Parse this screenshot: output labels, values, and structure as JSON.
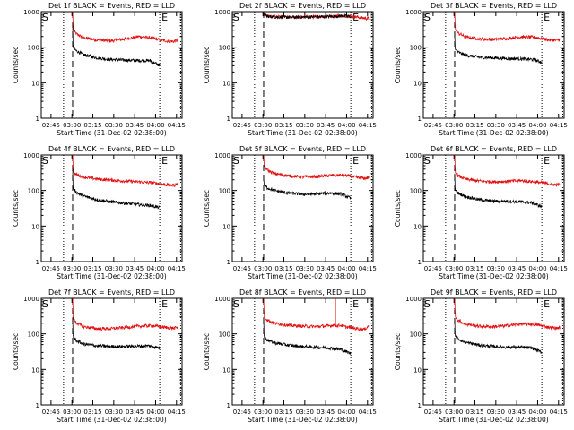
{
  "figure": {
    "type": "line",
    "n_rows": 3,
    "n_cols": 3,
    "y_scale": "log",
    "ylim": [
      1,
      1000
    ],
    "x_range_minutes_after_start": [
      0,
      101
    ],
    "marker_start": "S",
    "marker_end": "E",
    "xlabel": "Start Time (31-Dec-02 02:38:00)",
    "ylabel": "Counts/sec",
    "x_tick_labels": [
      "02:45",
      "03:00",
      "03:15",
      "03:30",
      "03:45",
      "04:00",
      "04:15"
    ],
    "x_tick_minutes": [
      7,
      22,
      37,
      52,
      67,
      82,
      97
    ],
    "y_tick_labels": [
      "1",
      "10",
      "100",
      "1000"
    ],
    "y_tick_values": [
      1,
      10,
      100,
      1000
    ],
    "dotted_lines_minutes": [
      16,
      85,
      100
    ],
    "dashed_line_minute": 22.5,
    "colors": {
      "events": "#000000",
      "lld": "#e01010",
      "guide": "#000000"
    }
  },
  "chart_data": [
    {
      "title": "Det 1f BLACK = Events, RED = LLD",
      "type": "line",
      "xlabel": "Start Time (31-Dec-02 02:38:00)",
      "ylabel": "Counts/sec",
      "ylim": [
        1,
        1000
      ],
      "series": [
        {
          "name": "LLD (red)",
          "x": [
            22.5,
            22.6,
            23,
            25,
            30,
            40,
            50,
            60,
            70,
            80,
            85,
            90,
            95,
            98
          ],
          "values": [
            1000,
            650,
            300,
            240,
            185,
            160,
            150,
            170,
            200,
            180,
            160,
            150,
            145,
            155
          ]
        },
        {
          "name": "Events (black)",
          "x": [
            22.5,
            22.6,
            23,
            25,
            30,
            40,
            50,
            60,
            70,
            78,
            85
          ],
          "values": [
            500,
            140,
            95,
            80,
            62,
            50,
            45,
            43,
            42,
            42,
            30
          ]
        }
      ]
    },
    {
      "title": "Det 2f BLACK = Events, RED = LLD",
      "type": "line",
      "xlabel": "Start Time (31-Dec-02 02:38:00)",
      "ylabel": "Counts/sec",
      "ylim": [
        1,
        1000
      ],
      "series": [
        {
          "name": "LLD (red)",
          "x": [
            22.5,
            22.6,
            23,
            25,
            30,
            40,
            50,
            60,
            70,
            80,
            85,
            90,
            95,
            98
          ],
          "values": [
            1000,
            900,
            800,
            750,
            720,
            700,
            700,
            720,
            740,
            760,
            740,
            700,
            650,
            640
          ]
        },
        {
          "name": "Events (black)",
          "x": [
            22.5,
            22.6,
            23,
            25,
            30,
            40,
            50,
            60,
            70,
            78,
            85
          ],
          "values": [
            1000,
            900,
            800,
            740,
            710,
            690,
            700,
            710,
            730,
            760,
            720
          ]
        }
      ]
    },
    {
      "title": "Det 3f BLACK = Events, RED = LLD",
      "type": "line",
      "xlabel": "Start Time (31-Dec-02 02:38:00)",
      "ylabel": "Counts/sec",
      "ylim": [
        1,
        1000
      ],
      "series": [
        {
          "name": "LLD (red)",
          "x": [
            22.5,
            22.6,
            23,
            25,
            30,
            40,
            50,
            60,
            70,
            80,
            85,
            90,
            95,
            98
          ],
          "values": [
            1000,
            650,
            320,
            250,
            195,
            170,
            165,
            175,
            195,
            190,
            175,
            160,
            155,
            165
          ]
        },
        {
          "name": "Events (black)",
          "x": [
            22.5,
            22.6,
            23,
            25,
            30,
            40,
            50,
            60,
            70,
            78,
            85
          ],
          "values": [
            250,
            120,
            85,
            72,
            60,
            52,
            50,
            48,
            47,
            45,
            38
          ]
        }
      ]
    },
    {
      "title": "Det 4f BLACK = Events, RED = LLD",
      "type": "line",
      "xlabel": "Start Time (31-Dec-02 02:38:00)",
      "ylabel": "Counts/sec",
      "ylim": [
        1,
        1000
      ],
      "series": [
        {
          "name": "LLD (red)",
          "x": [
            22.5,
            22.6,
            23,
            25,
            30,
            40,
            50,
            60,
            70,
            80,
            85,
            90,
            95,
            98
          ],
          "values": [
            1000,
            700,
            330,
            280,
            240,
            210,
            195,
            185,
            175,
            165,
            155,
            145,
            140,
            155
          ]
        },
        {
          "name": "Events (black)",
          "x": [
            22.5,
            22.6,
            23,
            25,
            30,
            40,
            50,
            60,
            70,
            78,
            85
          ],
          "values": [
            400,
            150,
            110,
            90,
            70,
            55,
            48,
            44,
            40,
            38,
            33
          ]
        }
      ]
    },
    {
      "title": "Det 5f BLACK = Events, RED = LLD",
      "type": "line",
      "xlabel": "Start Time (31-Dec-02 02:38:00)",
      "ylabel": "Counts/sec",
      "ylim": [
        1,
        1000
      ],
      "series": [
        {
          "name": "LLD (red)",
          "x": [
            22.5,
            22.6,
            23,
            25,
            30,
            40,
            50,
            60,
            70,
            80,
            85,
            90,
            95,
            98
          ],
          "values": [
            1000,
            750,
            480,
            380,
            300,
            260,
            240,
            245,
            265,
            270,
            250,
            230,
            220,
            230
          ]
        },
        {
          "name": "Events (black)",
          "x": [
            22.5,
            22.6,
            23,
            25,
            30,
            40,
            50,
            60,
            70,
            78,
            85
          ],
          "values": [
            220,
            170,
            140,
            120,
            100,
            85,
            78,
            80,
            85,
            80,
            60
          ]
        }
      ]
    },
    {
      "title": "Det 6f BLACK = Events, RED = LLD",
      "type": "line",
      "xlabel": "Start Time (31-Dec-02 02:38:00)",
      "ylabel": "Counts/sec",
      "ylim": [
        1,
        1000
      ],
      "series": [
        {
          "name": "LLD (red)",
          "x": [
            22.5,
            22.6,
            23,
            25,
            30,
            40,
            50,
            60,
            70,
            80,
            85,
            90,
            95,
            98
          ],
          "values": [
            1000,
            700,
            320,
            260,
            210,
            185,
            175,
            180,
            190,
            175,
            165,
            155,
            145,
            150
          ]
        },
        {
          "name": "Events (black)",
          "x": [
            22.5,
            22.6,
            23,
            25,
            30,
            40,
            50,
            60,
            70,
            78,
            85
          ],
          "values": [
            300,
            130,
            100,
            85,
            68,
            55,
            50,
            50,
            48,
            45,
            35
          ]
        }
      ]
    },
    {
      "title": "Det 7f BLACK = Events, RED = LLD",
      "type": "line",
      "xlabel": "Start Time (31-Dec-02 02:38:00)",
      "ylabel": "Counts/sec",
      "ylim": [
        1,
        1000
      ],
      "series": [
        {
          "name": "LLD (red)",
          "x": [
            22.5,
            22.6,
            23,
            25,
            30,
            40,
            50,
            60,
            70,
            80,
            85,
            90,
            95,
            98
          ],
          "values": [
            1000,
            650,
            260,
            210,
            160,
            140,
            140,
            150,
            165,
            170,
            160,
            150,
            145,
            150
          ]
        },
        {
          "name": "Events (black)",
          "x": [
            22.5,
            22.6,
            23,
            25,
            30,
            40,
            50,
            60,
            70,
            78,
            85
          ],
          "values": [
            300,
            120,
            80,
            65,
            52,
            46,
            44,
            44,
            45,
            46,
            40
          ]
        }
      ]
    },
    {
      "title": "Det 8f BLACK = Events, RED = LLD",
      "type": "line",
      "xlabel": "Start Time (31-Dec-02 02:38:00)",
      "ylabel": "Counts/sec",
      "ylim": [
        1,
        1000
      ],
      "series": [
        {
          "name": "LLD (red)",
          "x": [
            22.5,
            22.6,
            23,
            25,
            30,
            40,
            50,
            60,
            70,
            73,
            75,
            78,
            80,
            85,
            90,
            95,
            98
          ],
          "values": [
            1000,
            600,
            300,
            250,
            200,
            175,
            165,
            160,
            170,
            180,
            170,
            175,
            160,
            150,
            140,
            135,
            170
          ]
        },
        {
          "name": "Events (black)",
          "x": [
            22.5,
            22.6,
            23,
            25,
            30,
            40,
            50,
            60,
            70,
            78,
            85
          ],
          "values": [
            300,
            110,
            80,
            68,
            56,
            48,
            44,
            42,
            40,
            36,
            28
          ]
        }
      ]
    },
    {
      "title": "Det 9f BLACK = Events, RED = LLD",
      "type": "line",
      "xlabel": "Start Time (31-Dec-02 02:38:00)",
      "ylabel": "Counts/sec",
      "ylim": [
        1,
        1000
      ],
      "series": [
        {
          "name": "LLD (red)",
          "x": [
            22.5,
            22.6,
            23,
            25,
            30,
            40,
            50,
            60,
            70,
            80,
            85,
            90,
            95,
            98
          ],
          "values": [
            1000,
            650,
            300,
            240,
            190,
            165,
            160,
            170,
            190,
            185,
            170,
            155,
            145,
            150
          ]
        },
        {
          "name": "Events (black)",
          "x": [
            22.5,
            22.6,
            23,
            25,
            30,
            40,
            50,
            60,
            70,
            78,
            85
          ],
          "values": [
            260,
            110,
            85,
            72,
            58,
            48,
            44,
            42,
            42,
            40,
            30
          ]
        }
      ]
    }
  ]
}
